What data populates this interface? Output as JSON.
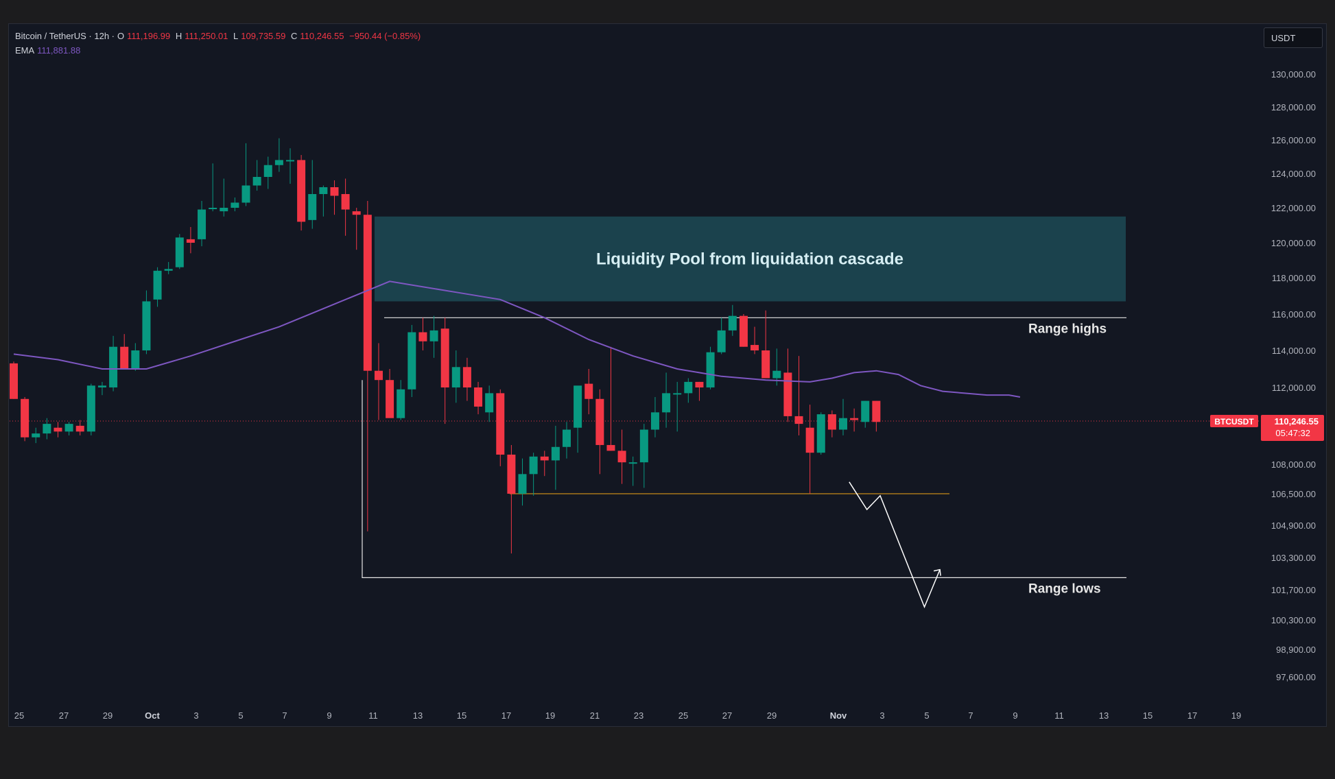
{
  "legend": {
    "symbol": "Bitcoin / TetherUS · 12h ·",
    "o_label": "O",
    "o": "111,196.99",
    "h_label": "H",
    "h": "111,250.01",
    "l_label": "L",
    "l": "109,735.59",
    "c_label": "C",
    "c": "110,246.55",
    "change": "−950.44 (−0.85%)",
    "ema_label": "EMA",
    "ema": "111,881.88"
  },
  "currency_button": "USDT",
  "price_tag": {
    "symbol": "BTCUSDT",
    "price": "110,246.55",
    "countdown": "05:47:32"
  },
  "annotations": {
    "liquidity_pool": "Liquidity Pool from liquidation cascade",
    "range_highs": "Range highs",
    "range_lows": "Range lows"
  },
  "colors": {
    "up": "#089981",
    "down": "#f23645",
    "ema": "#7e57c2",
    "zone": "#1d4a55",
    "support": "#c68a18",
    "background": "#131722"
  },
  "chart_data": {
    "type": "candlestick",
    "interval": "12h",
    "y_ticks": [
      "130,000.00",
      "128,000.00",
      "126,000.00",
      "124,000.00",
      "122,000.00",
      "120,000.00",
      "118,000.00",
      "116,000.00",
      "114,000.00",
      "112,000.00",
      "108,000.00",
      "106,500.00",
      "104,900.00",
      "103,300.00",
      "101,700.00",
      "100,300.00",
      "98,900.00",
      "97,600.00"
    ],
    "x_ticks": [
      "25",
      "27",
      "29",
      "Oct",
      "3",
      "5",
      "7",
      "9",
      "11",
      "13",
      "15",
      "17",
      "19",
      "21",
      "23",
      "25",
      "27",
      "29",
      "Nov",
      "3",
      "5",
      "7",
      "9",
      "11",
      "13",
      "15",
      "17",
      "19"
    ],
    "candles": [
      [
        113300,
        113400,
        111400,
        111400
      ],
      [
        111400,
        111500,
        109200,
        109400
      ],
      [
        109400,
        109900,
        109100,
        109600
      ],
      [
        109600,
        110400,
        109300,
        110100
      ],
      [
        109900,
        110200,
        109400,
        109700
      ],
      [
        109700,
        110200,
        109500,
        110100
      ],
      [
        110000,
        110300,
        109500,
        109700
      ],
      [
        109700,
        112200,
        109500,
        112100
      ],
      [
        112000,
        112300,
        111600,
        112100
      ],
      [
        112000,
        114800,
        111800,
        114200
      ],
      [
        114200,
        114900,
        113000,
        113000
      ],
      [
        113000,
        114400,
        112900,
        114000
      ],
      [
        114000,
        117300,
        113800,
        116700
      ],
      [
        116800,
        118600,
        116400,
        118400
      ],
      [
        118400,
        118900,
        118200,
        118500
      ],
      [
        118600,
        120500,
        118500,
        120300
      ],
      [
        120200,
        120900,
        119400,
        120000
      ],
      [
        120200,
        122400,
        119800,
        121900
      ],
      [
        122000,
        124600,
        121800,
        122000
      ],
      [
        121800,
        123700,
        121500,
        122000
      ],
      [
        122000,
        122600,
        121800,
        122300
      ],
      [
        122300,
        125800,
        122100,
        123300
      ],
      [
        123300,
        124800,
        123000,
        123800
      ],
      [
        123800,
        125000,
        123100,
        124500
      ],
      [
        124500,
        126100,
        124100,
        124800
      ],
      [
        124800,
        125500,
        123400,
        124800
      ],
      [
        124800,
        125100,
        120700,
        121200
      ],
      [
        121300,
        124800,
        120800,
        122800
      ],
      [
        122800,
        123300,
        121500,
        123200
      ],
      [
        123200,
        123600,
        121600,
        122700
      ],
      [
        122800,
        123700,
        120400,
        121900
      ],
      [
        121800,
        122000,
        119600,
        121600
      ],
      [
        121600,
        122400,
        104600,
        112900
      ],
      [
        112900,
        114400,
        110300,
        112400
      ],
      [
        112400,
        113000,
        110500,
        110400
      ],
      [
        110400,
        112400,
        110300,
        111900
      ],
      [
        111900,
        115400,
        111500,
        115000
      ],
      [
        115000,
        115800,
        114000,
        114500
      ],
      [
        114500,
        115900,
        113600,
        115100
      ],
      [
        115200,
        115800,
        110100,
        112000
      ],
      [
        112000,
        114000,
        111200,
        113100
      ],
      [
        113100,
        113600,
        111300,
        112000
      ],
      [
        112000,
        112300,
        110600,
        111000
      ],
      [
        110700,
        112100,
        110200,
        111700
      ],
      [
        111700,
        111900,
        107900,
        108500
      ],
      [
        108500,
        109000,
        103500,
        106500
      ],
      [
        106500,
        108300,
        105900,
        107500
      ],
      [
        107500,
        108600,
        106400,
        108400
      ],
      [
        108400,
        108700,
        107400,
        108200
      ],
      [
        108200,
        110000,
        106700,
        108900
      ],
      [
        108900,
        110200,
        108300,
        109800
      ],
      [
        109900,
        112000,
        108600,
        112100
      ],
      [
        112200,
        113000,
        110600,
        111400
      ],
      [
        111400,
        111900,
        107500,
        109000
      ],
      [
        109000,
        114200,
        108700,
        108700
      ],
      [
        108700,
        109800,
        107000,
        108100
      ],
      [
        108100,
        108400,
        106900,
        108100
      ],
      [
        108100,
        110100,
        106800,
        109800
      ],
      [
        109800,
        111500,
        109400,
        110700
      ],
      [
        110700,
        112800,
        109900,
        111700
      ],
      [
        111700,
        112300,
        109700,
        111700
      ],
      [
        111700,
        112500,
        111200,
        112300
      ],
      [
        112300,
        112300,
        111300,
        112000
      ],
      [
        112000,
        114200,
        111900,
        113900
      ],
      [
        113900,
        115800,
        113800,
        115100
      ],
      [
        115100,
        116500,
        114800,
        115900
      ],
      [
        115900,
        116000,
        114200,
        114200
      ],
      [
        114300,
        115300,
        113800,
        114000
      ],
      [
        114000,
        116200,
        112500,
        112500
      ],
      [
        112500,
        114100,
        112100,
        112900
      ],
      [
        112800,
        114100,
        110200,
        110500
      ],
      [
        110500,
        113700,
        109500,
        110100
      ],
      [
        109900,
        111100,
        106500,
        108600
      ],
      [
        108600,
        110700,
        108500,
        110600
      ],
      [
        110600,
        110800,
        109400,
        109800
      ],
      [
        109800,
        111400,
        109500,
        110400
      ],
      [
        110400,
        110900,
        109700,
        110300
      ],
      [
        110200,
        111300,
        109900,
        111300
      ],
      [
        111300,
        111300,
        109700,
        110200
      ]
    ],
    "ema": [
      [
        0,
        113800
      ],
      [
        4,
        113500
      ],
      [
        8,
        113000
      ],
      [
        12,
        113000
      ],
      [
        16,
        113700
      ],
      [
        20,
        114500
      ],
      [
        24,
        115300
      ],
      [
        28,
        116300
      ],
      [
        32,
        117300
      ],
      [
        34,
        117800
      ],
      [
        36,
        117600
      ],
      [
        40,
        117200
      ],
      [
        44,
        116800
      ],
      [
        48,
        115800
      ],
      [
        52,
        114600
      ],
      [
        56,
        113700
      ],
      [
        60,
        113000
      ],
      [
        64,
        112600
      ],
      [
        68,
        112400
      ],
      [
        72,
        112300
      ],
      [
        74,
        112500
      ],
      [
        76,
        112800
      ],
      [
        78,
        112900
      ],
      [
        80,
        112700
      ],
      [
        82,
        112100
      ],
      [
        84,
        111800
      ],
      [
        86,
        111700
      ],
      [
        88,
        111600
      ],
      [
        90,
        111600
      ],
      [
        91,
        111500
      ]
    ],
    "liquidity_zone": [
      116700,
      121500
    ],
    "range_highs": 115800,
    "range_lows": 102300,
    "support_level": 106500,
    "last_price": 110246.55,
    "projection_path": [
      [
        3.5,
        107100
      ],
      [
        4.3,
        105700
      ],
      [
        4.9,
        106400
      ],
      [
        6.9,
        100900
      ],
      [
        7.6,
        102700
      ]
    ],
    "xlabel": "",
    "ylabel": ""
  }
}
